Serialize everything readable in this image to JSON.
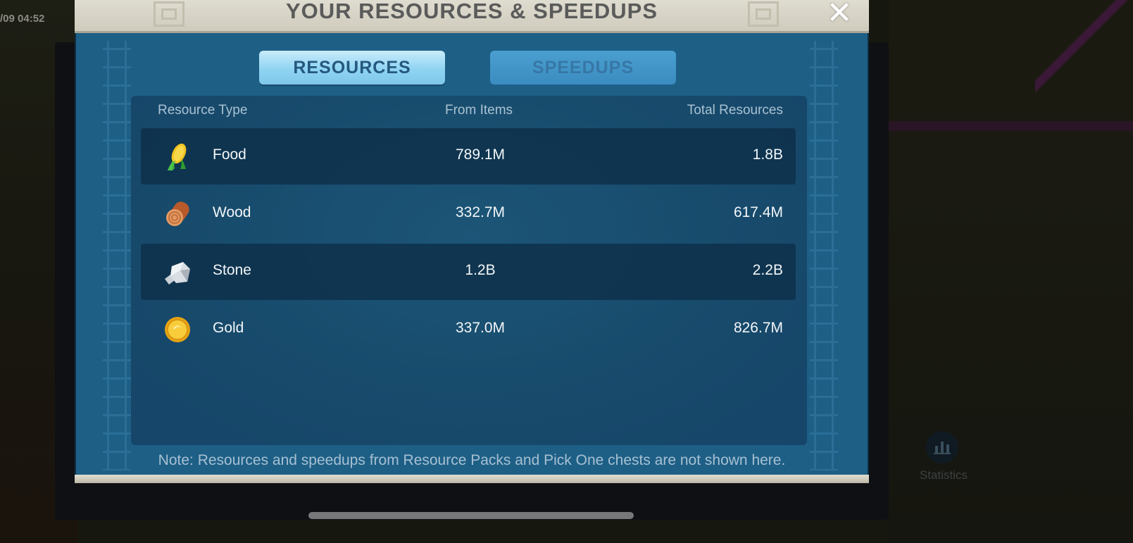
{
  "status": {
    "timestamp": "/09 04:52"
  },
  "dialog": {
    "title": "YOUR RESOURCES & SPEEDUPS",
    "close_icon": "close-icon",
    "tabs": [
      {
        "label": "RESOURCES",
        "active": true
      },
      {
        "label": "SPEEDUPS",
        "active": false
      }
    ],
    "table": {
      "headers": {
        "type": "Resource Type",
        "from_items": "From Items",
        "total": "Total Resources"
      },
      "rows": [
        {
          "icon": "corn-icon",
          "name": "Food",
          "from_items": "789.1M",
          "total": "1.8B"
        },
        {
          "icon": "log-icon",
          "name": "Wood",
          "from_items": "332.7M",
          "total": "617.4M"
        },
        {
          "icon": "stone-icon",
          "name": "Stone",
          "from_items": "1.2B",
          "total": "2.2B"
        },
        {
          "icon": "gold-coin-icon",
          "name": "Gold",
          "from_items": "337.0M",
          "total": "826.7M"
        }
      ]
    },
    "note": "Note: Resources and speedups from Resource Packs and Pick One chests are not shown here."
  },
  "background": {
    "statistics_label": "Statistics",
    "statistics_icon": "bar-chart-icon"
  },
  "colors": {
    "dialog_blue": "#1e5f86",
    "panel_blue": "#17496b",
    "tab_active": "#8fd4f2",
    "tab_inactive": "#3b8cc0",
    "title_bar": "#d8d5c8"
  }
}
